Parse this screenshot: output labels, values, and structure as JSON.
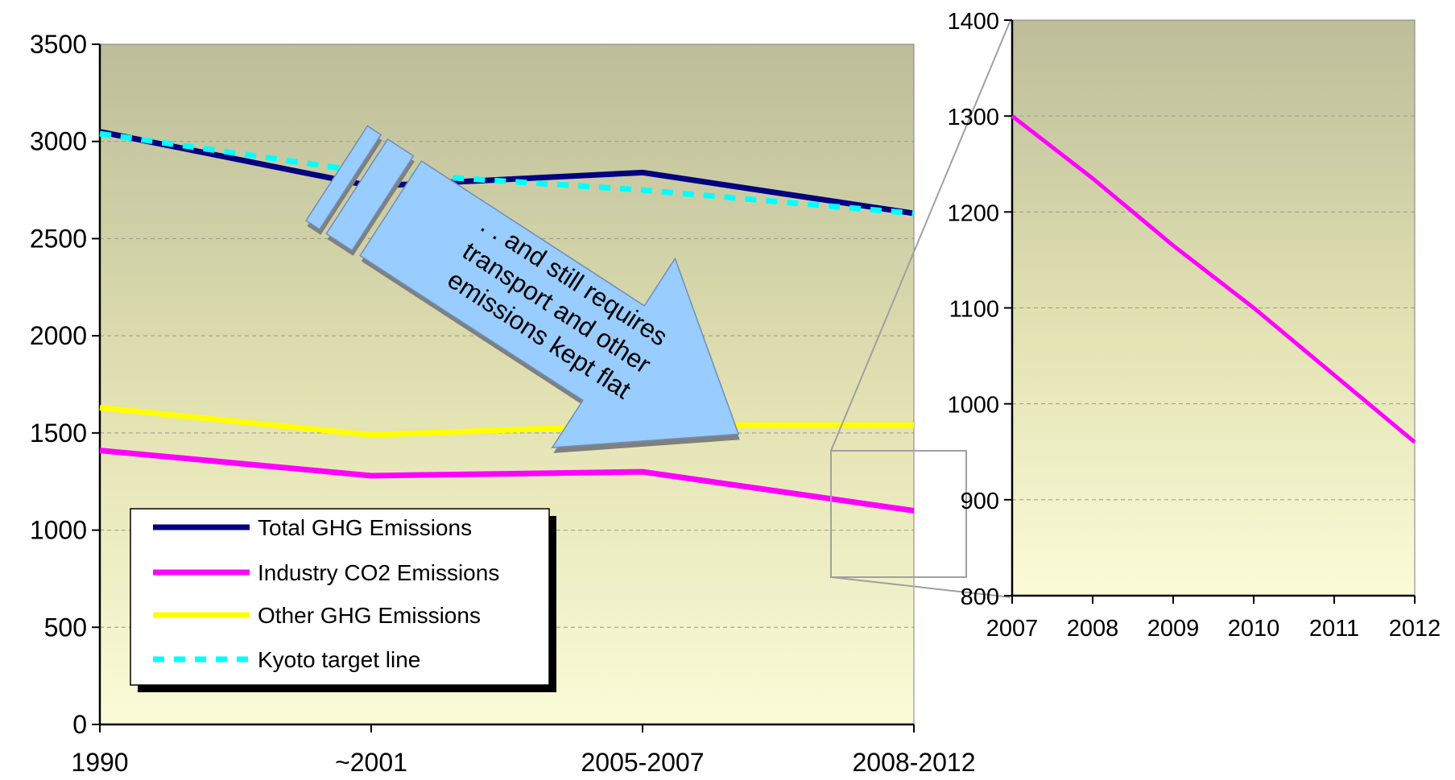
{
  "chart_data": [
    {
      "type": "line",
      "categories": [
        "1990",
        "~2001",
        "2005-2007",
        "2008-2012"
      ],
      "ylim": [
        0,
        3500
      ],
      "yticks": [
        0,
        500,
        1000,
        1500,
        2000,
        2500,
        3000,
        3500
      ],
      "grid": true,
      "legend_position": "bottom-left",
      "series": [
        {
          "name": "Total GHG Emissions",
          "color": "#000080",
          "dash": false,
          "values": [
            3050,
            2770,
            2840,
            2630
          ]
        },
        {
          "name": "Industry CO2 Emissions",
          "color": "#ff00ff",
          "dash": false,
          "values": [
            1410,
            1280,
            1300,
            1100
          ]
        },
        {
          "name": "Other GHG Emissions",
          "color": "#ffff00",
          "dash": false,
          "values": [
            1630,
            1490,
            1540,
            1540
          ]
        },
        {
          "name": "Kyoto target line",
          "color": "#00ffff",
          "dash": true,
          "values": [
            3040,
            2840,
            2750,
            2630
          ]
        }
      ],
      "annotation": {
        "lines": [
          ". . and still requires",
          "transport and other",
          "emissions kept flat"
        ],
        "color": "#99ccff"
      }
    },
    {
      "type": "line",
      "categories": [
        "2007",
        "2008",
        "2009",
        "2010",
        "2011",
        "2012"
      ],
      "ylim": [
        800,
        1400
      ],
      "yticks": [
        800,
        900,
        1000,
        1100,
        1200,
        1300,
        1400
      ],
      "grid": true,
      "series": [
        {
          "color": "#ff00ff",
          "dash": false,
          "values": [
            1300,
            1235,
            1165,
            1100,
            1030,
            960
          ]
        }
      ]
    }
  ]
}
